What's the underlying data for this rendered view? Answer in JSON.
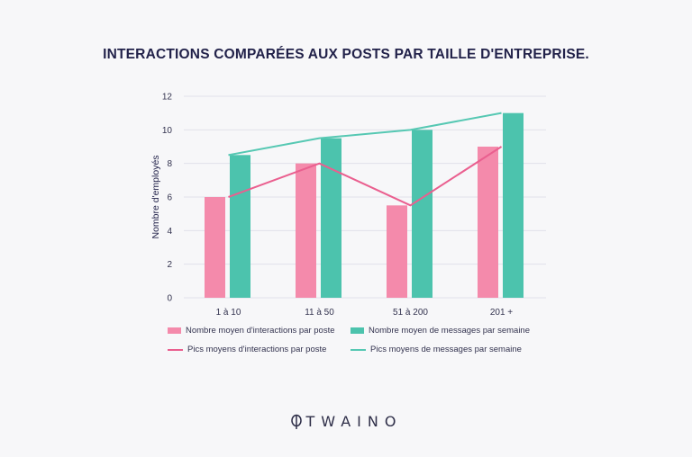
{
  "title": "INTERACTIONS COMPARÉES AUX POSTS PAR TAILLE D'ENTREPRISE.",
  "brand": {
    "name": "TWAINO",
    "icon": "leaf-icon"
  },
  "colors": {
    "pink": "#f48aab",
    "teal": "#4cc3ad",
    "pinkLine": "#ea5f8f",
    "tealLine": "#56c8b3"
  },
  "chart_data": {
    "type": "bar",
    "categories": [
      "1 à 10",
      "11 à 50",
      "51 à 200",
      "201 +"
    ],
    "series": [
      {
        "name": "Nombre moyen d'interactions par poste",
        "kind": "bar",
        "values": [
          6,
          8,
          5.5,
          9
        ]
      },
      {
        "name": "Nombre moyen de messages par semaine",
        "kind": "bar",
        "values": [
          8.5,
          9.5,
          10,
          11
        ]
      },
      {
        "name": "Pics moyens d'interactions par poste",
        "kind": "line",
        "values": [
          6,
          8,
          5.5,
          9
        ]
      },
      {
        "name": "Pics moyens de messages par semaine",
        "kind": "line",
        "values": [
          8.5,
          9.5,
          10,
          11
        ]
      }
    ],
    "ylabel": "Nombre d'employés",
    "xlabel": "",
    "ylim": [
      0,
      12
    ],
    "yticks": [
      "0",
      "2",
      "4",
      "6",
      "8",
      "10",
      "12"
    ],
    "grid": true,
    "legend": "bottom"
  }
}
